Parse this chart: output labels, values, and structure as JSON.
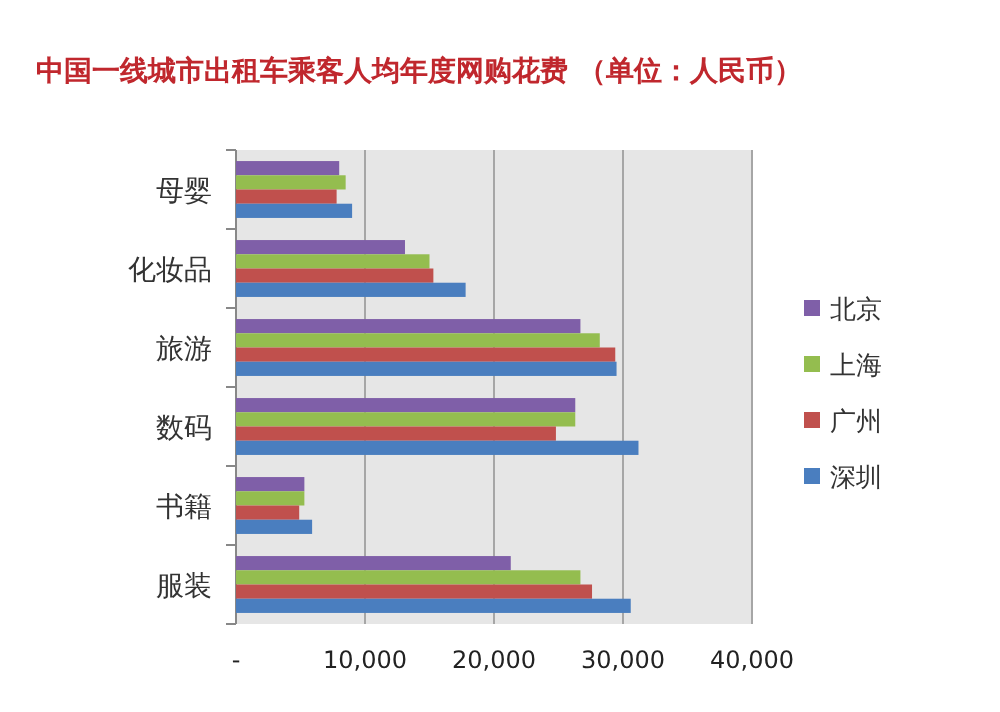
{
  "chart_data": {
    "type": "bar",
    "orientation": "horizontal",
    "title": "中国一线城市出租车乘客人均年度网购花费 （单位：人民币）",
    "categories": [
      "母婴",
      "化妆品",
      "旅游",
      "数码",
      "书籍",
      "服装"
    ],
    "series": [
      {
        "name": "北京",
        "color": "#7f5fa8",
        "values": [
          8000,
          13100,
          26700,
          26300,
          5300,
          21300
        ]
      },
      {
        "name": "上海",
        "color": "#94bd4f",
        "values": [
          8500,
          15000,
          28200,
          26300,
          5300,
          26700
        ]
      },
      {
        "name": "广州",
        "color": "#c0504d",
        "values": [
          7800,
          15300,
          29400,
          24800,
          4900,
          27600
        ]
      },
      {
        "name": "深圳",
        "color": "#4a7ebf",
        "values": [
          9000,
          17800,
          29500,
          31200,
          5900,
          30600
        ]
      }
    ],
    "xlim": [
      0,
      40000
    ],
    "xticks": [
      {
        "value": 0,
        "label": "-"
      },
      {
        "value": 10000,
        "label": "10,000"
      },
      {
        "value": 20000,
        "label": "20,000"
      },
      {
        "value": 30000,
        "label": "30,000"
      },
      {
        "value": 40000,
        "label": "40,000"
      }
    ],
    "grid": "x",
    "legend": "right"
  }
}
